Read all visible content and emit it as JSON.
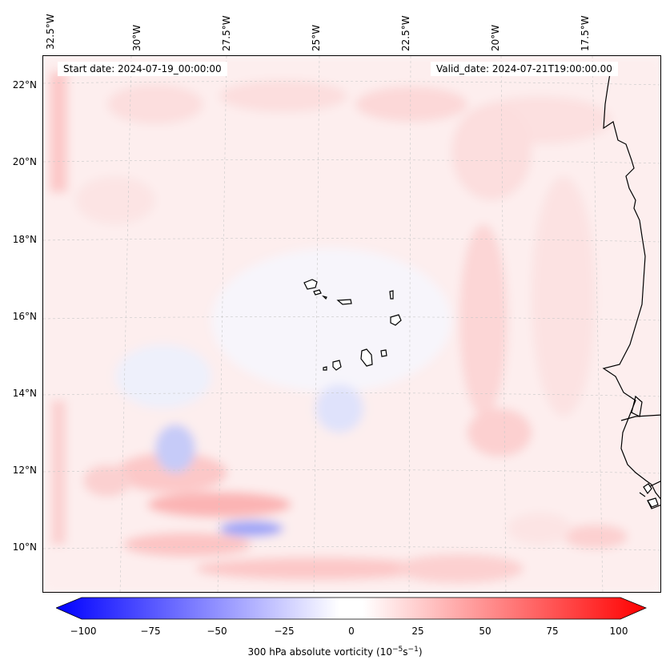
{
  "map": {
    "start_date": "Start date: 2024-07-19_00:00:00",
    "valid_date": "Valid_date: 2024-07-21T19:00:00.00",
    "longitude_labels": [
      "32.5°W",
      "30°W",
      "27.5°W",
      "25°W",
      "22.5°W",
      "20°W",
      "17.5°W"
    ],
    "latitude_labels": [
      "22°N",
      "20°N",
      "18°N",
      "16°N",
      "14°N",
      "12°N",
      "10°N"
    ],
    "field": "300 hPa absolute vorticity",
    "colors": {
      "negative": "#0000ff",
      "neutral": "#ffffff",
      "positive": "#ff0000",
      "coast": "#000000"
    }
  },
  "colorbar": {
    "label": "300 hPa absolute vorticity (10",
    "label_exp1": "−5",
    "label_mid": "s",
    "label_exp2": "−1",
    "label_end": ")",
    "ticks": [
      "−100",
      "−75",
      "−50",
      "−25",
      "0",
      "25",
      "50",
      "75",
      "100"
    ],
    "range": [
      -100,
      100
    ]
  }
}
